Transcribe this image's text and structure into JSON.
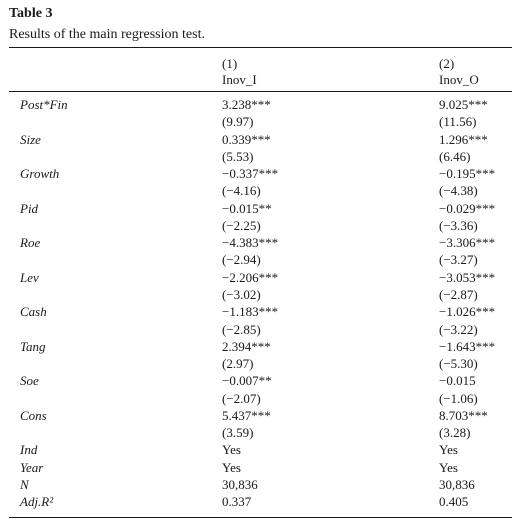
{
  "table": {
    "label": "Table 3",
    "caption": "Results of the main regression test.",
    "columns": [
      {
        "number": "(1)",
        "name": "Inov_I"
      },
      {
        "number": "(2)",
        "name": "Inov_O"
      }
    ],
    "rows": [
      {
        "var": "Post*Fin",
        "c1": "3.238***",
        "c2": "9.025***"
      },
      {
        "var": "",
        "c1": "(9.97)",
        "c2": "(11.56)"
      },
      {
        "var": "Size",
        "c1": "0.339***",
        "c2": "1.296***"
      },
      {
        "var": "",
        "c1": "(5.53)",
        "c2": "(6.46)"
      },
      {
        "var": "Growth",
        "c1": "−0.337***",
        "c2": "−0.195***"
      },
      {
        "var": "",
        "c1": "(−4.16)",
        "c2": "(−4.38)"
      },
      {
        "var": "Pid",
        "c1": "−0.015**",
        "c2": "−0.029***"
      },
      {
        "var": "",
        "c1": "(−2.25)",
        "c2": "(−3.36)"
      },
      {
        "var": "Roe",
        "c1": "−4.383***",
        "c2": "−3.306***"
      },
      {
        "var": "",
        "c1": "(−2.94)",
        "c2": "(−3.27)"
      },
      {
        "var": "Lev",
        "c1": "−2.206***",
        "c2": "−3.053***"
      },
      {
        "var": "",
        "c1": "(−3.02)",
        "c2": "(−2.87)"
      },
      {
        "var": "Cash",
        "c1": "−1.183***",
        "c2": "−1.026***"
      },
      {
        "var": "",
        "c1": "(−2.85)",
        "c2": "(−3.22)"
      },
      {
        "var": "Tang",
        "c1": "2.394***",
        "c2": "−1.643***"
      },
      {
        "var": "",
        "c1": "(2.97)",
        "c2": "(−5.30)"
      },
      {
        "var": "Soe",
        "c1": "−0.007**",
        "c2": "−0.015"
      },
      {
        "var": "",
        "c1": "(−2.07)",
        "c2": "(−1.06)"
      },
      {
        "var": "Cons",
        "c1": "5.437***",
        "c2": "8.703***"
      },
      {
        "var": "",
        "c1": "(3.59)",
        "c2": "(3.28)"
      },
      {
        "var": "Ind",
        "c1": "Yes",
        "c2": "Yes"
      },
      {
        "var": "Year",
        "c1": "Yes",
        "c2": "Yes"
      },
      {
        "var": "N",
        "c1": "30,836",
        "c2": "30,836"
      },
      {
        "var": "Adj.R²",
        "c1": "0.337",
        "c2": "0.405"
      }
    ]
  }
}
